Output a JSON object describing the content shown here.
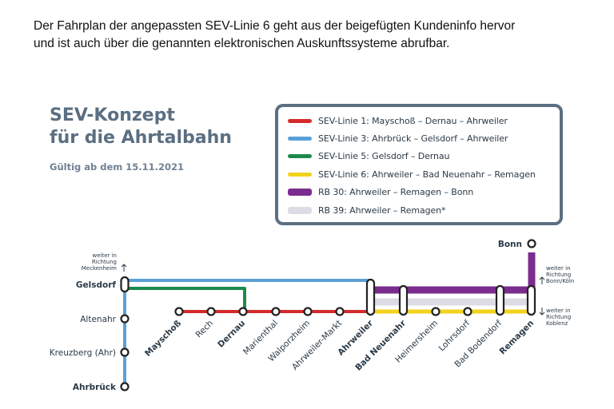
{
  "intro": {
    "line1": "Der Fahrplan der angepassten SEV-Linie 6 geht aus der beigefügten Kundeninfo hervor",
    "line2": "und ist auch über die genannten elektronischen Auskunftssysteme abrufbar."
  },
  "title": {
    "line1": "SEV-Konzept",
    "line2": "für die Ahrtalbahn",
    "valid": "Gültig ab dem 15.11.2021"
  },
  "legend": [
    {
      "label": "SEV-Linie 1: Mayschoß – Dernau – Ahrweiler",
      "color": "#d42a2a",
      "thick": false
    },
    {
      "label": "SEV-Linie 3: Ahrbrück – Gelsdorf – Ahrweiler",
      "color": "#5aa0d8",
      "thick": false
    },
    {
      "label": "SEV-Linie 5: Gelsdorf – Dernau",
      "color": "#1e8a4c",
      "thick": false
    },
    {
      "label": "SEV-Linie 6: Ahrweiler – Bad Neuenahr – Remagen",
      "color": "#f2d21c",
      "thick": false
    },
    {
      "label": "RB 30: Ahrweiler – Remagen – Bonn",
      "color": "#7b2c8e",
      "thick": true
    },
    {
      "label": "RB 39: Ahrweiler – Remagen*",
      "color": "#dcdce6",
      "thick": true
    }
  ],
  "stations": {
    "gelsdorf": "Gelsdorf",
    "altenahr": "Altenahr",
    "kreuzberg": "Kreuzberg (Ahr)",
    "ahrbrueck": "Ahrbrück",
    "mayschoss": "Mayschoß",
    "rech": "Rech",
    "dernau": "Dernau",
    "marienthal": "Marienthal",
    "walporzheim": "Walporzheim",
    "ahrweiler_markt": "Ahrweiler-Markt",
    "ahrweiler": "Ahrweiler",
    "bad_neuenahr": "Bad Neuenahr",
    "heimersheim": "Heimersheim",
    "lohrsdorf": "Lohrsdorf",
    "bad_bodendorf": "Bad Bodendorf",
    "remagen": "Remagen",
    "bonn": "Bonn"
  },
  "notes": {
    "meckenheim": [
      "weiter in",
      "Richtung",
      "Meckenheim"
    ],
    "bonn": [
      "weiter in",
      "Richtung",
      "Bonn/Köln"
    ],
    "koblenz": [
      "weiter in",
      "Richtung",
      "Koblenz"
    ]
  },
  "colors": {
    "sev1": "#d42a2a",
    "sev3": "#5aa0d8",
    "sev5": "#1e8a4c",
    "sev6": "#f2d21c",
    "rb30": "#7b2c8e",
    "rb39": "#dcdce6",
    "title": "#5b6f82"
  }
}
